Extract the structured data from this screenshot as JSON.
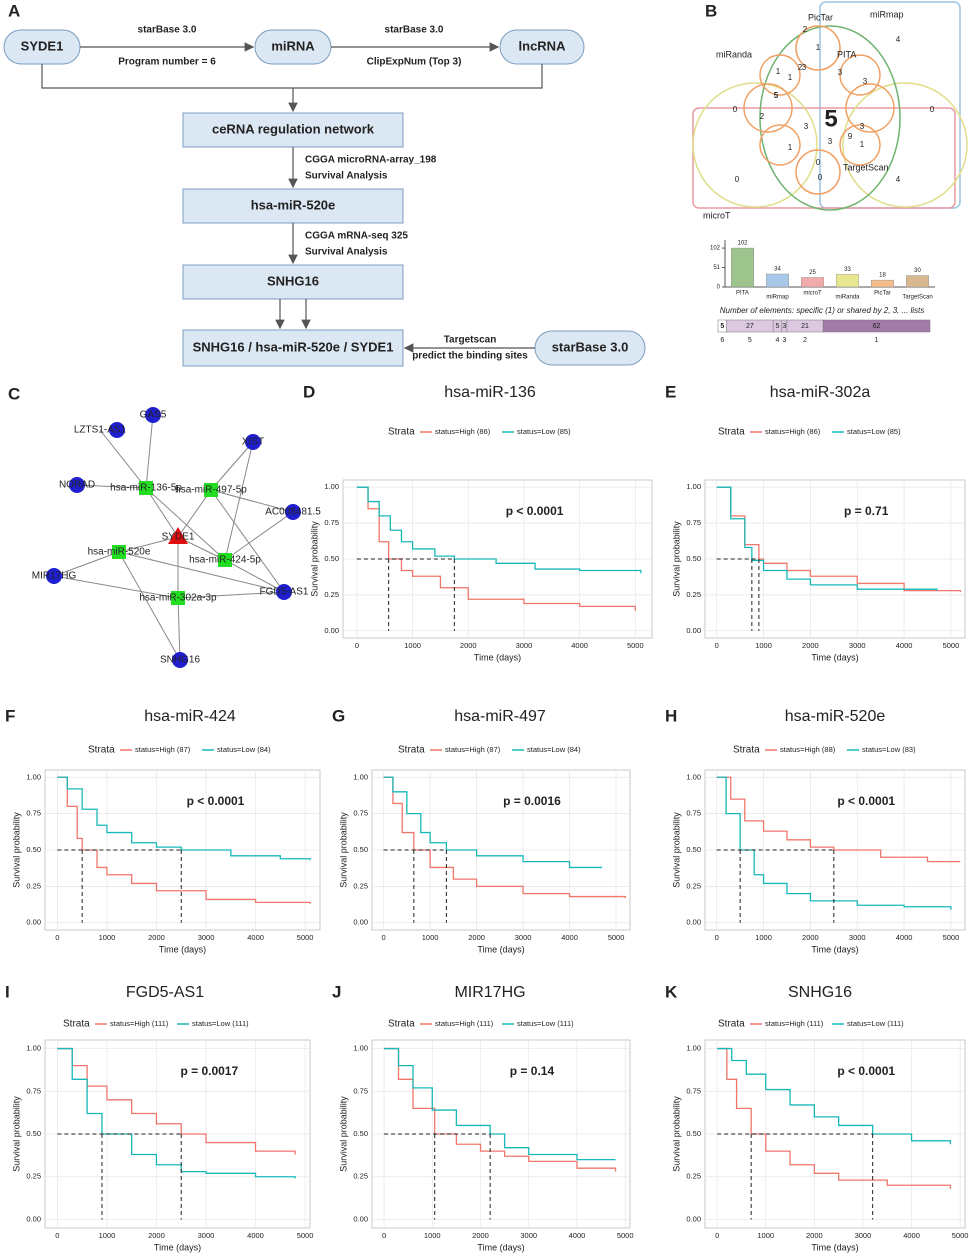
{
  "flowchart": {
    "letter": "A",
    "boxes": [
      "SYDE1",
      "miRNA",
      "lncRNA",
      "ceRNA regulation network",
      "hsa-miR-520e",
      "SNHG16",
      "SNHG16 / hsa-miR-520e / SYDE1",
      "starBase 3.0"
    ],
    "edge_labels": [
      "starBase 3.0",
      "Program number = 6",
      "starBase 3.0",
      "ClipExpNum (Top 3)",
      "CGGA microRNA-array_198",
      "Survival Analysis",
      "CGGA mRNA-seq 325",
      "Survival Analysis",
      "Targetscan",
      "predict the binding sites"
    ]
  },
  "venn": {
    "letter": "B",
    "sets": [
      "miRmap",
      "PicTar",
      "PITA",
      "miRanda",
      "TargetScan",
      "microT"
    ],
    "core": 5,
    "regions": [
      4,
      0,
      0,
      2,
      3,
      3,
      2,
      1,
      1,
      3,
      3,
      5,
      1,
      3,
      0,
      4,
      9,
      1,
      3,
      0,
      0,
      1,
      2
    ],
    "strip_title": "Number of elements: specific (1) or shared by 2, 3, ... lists",
    "strip": [
      5,
      27,
      5,
      3,
      21,
      62
    ],
    "strip_counts": [
      6,
      5,
      4,
      3,
      2,
      1
    ]
  },
  "network": {
    "letter": "C",
    "nodes": [
      {
        "label": "LZTS1-AS1",
        "kind": "lncRNA"
      },
      {
        "label": "GAS5",
        "kind": "lncRNA"
      },
      {
        "label": "NORAD",
        "kind": "lncRNA"
      },
      {
        "label": "XIST",
        "kind": "lncRNA"
      },
      {
        "label": "AC008481.5",
        "kind": "lncRNA"
      },
      {
        "label": "MIR17HG",
        "kind": "lncRNA"
      },
      {
        "label": "FGD5-AS1",
        "kind": "lncRNA"
      },
      {
        "label": "SNHG16",
        "kind": "lncRNA"
      },
      {
        "label": "hsa-miR-136-5p",
        "kind": "miRNA"
      },
      {
        "label": "hsa-miR-497-5p",
        "kind": "miRNA"
      },
      {
        "label": "hsa-miR-520e",
        "kind": "miRNA"
      },
      {
        "label": "hsa-miR-424-5p",
        "kind": "miRNA"
      },
      {
        "label": "hsa-miR-302a-3p",
        "kind": "miRNA"
      },
      {
        "label": "SYDE1",
        "kind": "mRNA"
      }
    ],
    "edges": [
      [
        0,
        8
      ],
      [
        1,
        8
      ],
      [
        2,
        8
      ],
      [
        8,
        13
      ],
      [
        8,
        11
      ],
      [
        3,
        9
      ],
      [
        3,
        11
      ],
      [
        9,
        13
      ],
      [
        9,
        4
      ],
      [
        9,
        6
      ],
      [
        4,
        11
      ],
      [
        11,
        13
      ],
      [
        11,
        6
      ],
      [
        10,
        13
      ],
      [
        10,
        5
      ],
      [
        10,
        7
      ],
      [
        10,
        6
      ],
      [
        12,
        13
      ],
      [
        12,
        7
      ],
      [
        12,
        6
      ],
      [
        12,
        5
      ]
    ]
  },
  "chart_data": [
    {
      "type": "bar",
      "letter": "",
      "categories": [
        "PITA",
        "miRmap",
        "microT",
        "miRanda",
        "PicTar",
        "TargetScan"
      ],
      "values": [
        102,
        34,
        25,
        33,
        18,
        30
      ],
      "colors": [
        "#9cc48c",
        "#a9c7e8",
        "#f2aaaa",
        "#e8e690",
        "#f5bc8c",
        "#d8b890"
      ],
      "ylim": [
        0,
        110
      ],
      "yticks": [
        0,
        51,
        102
      ]
    },
    {
      "type": "km",
      "letter": "D",
      "title": "hsa-miR-136",
      "xlabel": "Time (days)",
      "ylabel": "Survival probability",
      "legend_title": "Strata",
      "annotation": "p < 0.0001",
      "xlim": [
        -250,
        5300
      ],
      "xticks": [
        0,
        1000,
        2000,
        3000,
        4000,
        5000
      ],
      "ylim": [
        -0.05,
        1.05
      ],
      "yticks": [
        {
          "value": 0,
          "label": "0.00"
        },
        {
          "value": 0.25,
          "label": "0.25"
        },
        {
          "value": 0.5,
          "label": "0.50"
        },
        {
          "value": 0.75,
          "label": "0.75"
        },
        {
          "value": 1,
          "label": "1.00"
        }
      ],
      "grid": true,
      "medians": [
        570,
        1750
      ],
      "median_y": 0.5,
      "series": [
        {
          "name": "status=High (86)",
          "color": "#f0756b",
          "x": [
            0,
            200,
            400,
            570,
            800,
            1000,
            1500,
            2000,
            3000,
            4000,
            5000
          ],
          "values": [
            1,
            0.85,
            0.62,
            0.5,
            0.42,
            0.38,
            0.3,
            0.22,
            0.19,
            0.17,
            0.14
          ]
        },
        {
          "name": "status=Low (85)",
          "color": "#17b8b8",
          "x": [
            0,
            200,
            400,
            600,
            800,
            1000,
            1400,
            1750,
            2500,
            3200,
            4000,
            5100
          ],
          "values": [
            1,
            0.9,
            0.8,
            0.7,
            0.62,
            0.57,
            0.52,
            0.5,
            0.47,
            0.43,
            0.42,
            0.4
          ]
        }
      ]
    },
    {
      "type": "km",
      "letter": "E",
      "title": "hsa-miR-302a",
      "xlabel": "Time (days)",
      "ylabel": "Survival probability",
      "legend_title": "Strata",
      "annotation": "p = 0.71",
      "xlim": [
        -250,
        5300
      ],
      "xticks": [
        0,
        1000,
        2000,
        3000,
        4000,
        5000
      ],
      "ylim": [
        -0.05,
        1.05
      ],
      "yticks": [
        {
          "value": 0,
          "label": "0.00"
        },
        {
          "value": 0.25,
          "label": "0.25"
        },
        {
          "value": 0.5,
          "label": "0.50"
        },
        {
          "value": 0.75,
          "label": "0.75"
        },
        {
          "value": 1,
          "label": "1.00"
        }
      ],
      "grid": true,
      "medians": [
        750,
        900
      ],
      "median_y": 0.5,
      "series": [
        {
          "name": "status=High (86)",
          "color": "#f0756b",
          "x": [
            0,
            300,
            600,
            900,
            1000,
            1500,
            2000,
            3000,
            4000,
            5200
          ],
          "values": [
            1,
            0.8,
            0.6,
            0.5,
            0.47,
            0.42,
            0.38,
            0.33,
            0.28,
            0.27
          ]
        },
        {
          "name": "status=Low (85)",
          "color": "#17b8b8",
          "x": [
            0,
            300,
            600,
            750,
            1000,
            1500,
            2000,
            3000,
            4700
          ],
          "values": [
            1,
            0.78,
            0.58,
            0.49,
            0.42,
            0.36,
            0.32,
            0.29,
            0.28
          ]
        }
      ]
    },
    {
      "type": "km",
      "letter": "F",
      "title": "hsa-miR-424",
      "xlabel": "Time (days)",
      "ylabel": "Survival probability",
      "legend_title": "Strata",
      "annotation": "p < 0.0001",
      "xlim": [
        -250,
        5300
      ],
      "xticks": [
        0,
        1000,
        2000,
        3000,
        4000,
        5000
      ],
      "ylim": [
        -0.05,
        1.05
      ],
      "yticks": [
        {
          "value": 0,
          "label": "0.00"
        },
        {
          "value": 0.25,
          "label": "0.25"
        },
        {
          "value": 0.5,
          "label": "0.50"
        },
        {
          "value": 0.75,
          "label": "0.75"
        },
        {
          "value": 1,
          "label": "1.00"
        }
      ],
      "grid": true,
      "medians": [
        500,
        2500
      ],
      "median_y": 0.5,
      "series": [
        {
          "name": "status=High (87)",
          "color": "#f0756b",
          "x": [
            0,
            200,
            400,
            500,
            800,
            1000,
            1500,
            2000,
            3000,
            4000,
            5100
          ],
          "values": [
            1,
            0.8,
            0.58,
            0.5,
            0.38,
            0.33,
            0.27,
            0.22,
            0.16,
            0.14,
            0.13
          ]
        },
        {
          "name": "status=Low (84)",
          "color": "#17b8b8",
          "x": [
            0,
            200,
            500,
            800,
            1000,
            1500,
            2000,
            2500,
            3500,
            4500,
            5100
          ],
          "values": [
            1,
            0.92,
            0.78,
            0.67,
            0.62,
            0.55,
            0.52,
            0.5,
            0.46,
            0.44,
            0.43
          ]
        }
      ]
    },
    {
      "type": "km",
      "letter": "G",
      "title": "hsa-miR-497",
      "xlabel": "Time (days)",
      "ylabel": "Survival probability",
      "legend_title": "Strata",
      "annotation": "p = 0.0016",
      "xlim": [
        -250,
        5300
      ],
      "xticks": [
        0,
        1000,
        2000,
        3000,
        4000,
        5000
      ],
      "ylim": [
        -0.05,
        1.05
      ],
      "yticks": [
        {
          "value": 0,
          "label": "0.00"
        },
        {
          "value": 0.25,
          "label": "0.25"
        },
        {
          "value": 0.5,
          "label": "0.50"
        },
        {
          "value": 0.75,
          "label": "0.75"
        },
        {
          "value": 1,
          "label": "1.00"
        }
      ],
      "grid": true,
      "medians": [
        650,
        1350
      ],
      "median_y": 0.5,
      "series": [
        {
          "name": "status=High (87)",
          "color": "#f0756b",
          "x": [
            0,
            200,
            400,
            650,
            1000,
            1500,
            2000,
            3000,
            4000,
            5200
          ],
          "values": [
            1,
            0.82,
            0.62,
            0.5,
            0.38,
            0.3,
            0.25,
            0.2,
            0.18,
            0.17
          ]
        },
        {
          "name": "status=Low (84)",
          "color": "#17b8b8",
          "x": [
            0,
            200,
            500,
            800,
            1000,
            1350,
            2000,
            3000,
            4000,
            4700
          ],
          "values": [
            1,
            0.9,
            0.75,
            0.62,
            0.55,
            0.5,
            0.46,
            0.42,
            0.38,
            0.38
          ]
        }
      ]
    },
    {
      "type": "km",
      "letter": "H",
      "title": "hsa-miR-520e",
      "xlabel": "Time (days)",
      "ylabel": "Survival probability",
      "legend_title": "Strata",
      "annotation": "p < 0.0001",
      "xlim": [
        -250,
        5300
      ],
      "xticks": [
        0,
        1000,
        2000,
        3000,
        4000,
        5000
      ],
      "ylim": [
        -0.05,
        1.05
      ],
      "yticks": [
        {
          "value": 0,
          "label": "0.00"
        },
        {
          "value": 0.25,
          "label": "0.25"
        },
        {
          "value": 0.5,
          "label": "0.50"
        },
        {
          "value": 0.75,
          "label": "0.75"
        },
        {
          "value": 1,
          "label": "1.00"
        }
      ],
      "grid": true,
      "medians": [
        500,
        2500
      ],
      "median_y": 0.5,
      "series": [
        {
          "name": "status=High (88)",
          "color": "#f0756b",
          "x": [
            0,
            300,
            600,
            1000,
            1500,
            2000,
            2500,
            3500,
            4500,
            5200
          ],
          "values": [
            1,
            0.85,
            0.7,
            0.63,
            0.57,
            0.52,
            0.5,
            0.45,
            0.42,
            0.42
          ]
        },
        {
          "name": "status=Low (83)",
          "color": "#17b8b8",
          "x": [
            0,
            200,
            500,
            800,
            1000,
            1500,
            2000,
            3000,
            4000,
            5000
          ],
          "values": [
            1,
            0.75,
            0.5,
            0.33,
            0.27,
            0.2,
            0.15,
            0.12,
            0.11,
            0.09
          ]
        }
      ]
    },
    {
      "type": "km",
      "letter": "I",
      "title": "FGD5-AS1",
      "xlabel": "Time (days)",
      "ylabel": "Survival probability",
      "legend_title": "Strata",
      "annotation": "p = 0.0017",
      "xlim": [
        -250,
        5100
      ],
      "xticks": [
        0,
        1000,
        2000,
        3000,
        4000,
        5000
      ],
      "ylim": [
        -0.05,
        1.05
      ],
      "yticks": [
        {
          "value": 0,
          "label": "0.00"
        },
        {
          "value": 0.25,
          "label": "0.25"
        },
        {
          "value": 0.5,
          "label": "0.50"
        },
        {
          "value": 0.75,
          "label": "0.75"
        },
        {
          "value": 1,
          "label": "1.00"
        }
      ],
      "grid": true,
      "medians": [
        900,
        2500
      ],
      "median_y": 0.5,
      "series": [
        {
          "name": "status=High (111)",
          "color": "#f0756b",
          "x": [
            0,
            300,
            600,
            1000,
            1500,
            2000,
            2500,
            3000,
            4000,
            4800
          ],
          "values": [
            1,
            0.9,
            0.78,
            0.7,
            0.62,
            0.56,
            0.5,
            0.45,
            0.4,
            0.38
          ]
        },
        {
          "name": "status=Low (111)",
          "color": "#17b8b8",
          "x": [
            0,
            300,
            600,
            900,
            1500,
            2000,
            2500,
            3000,
            4000,
            4800
          ],
          "values": [
            1,
            0.82,
            0.62,
            0.5,
            0.38,
            0.32,
            0.28,
            0.27,
            0.25,
            0.24
          ]
        }
      ]
    },
    {
      "type": "km",
      "letter": "J",
      "title": "MIR17HG",
      "xlabel": "Time (days)",
      "ylabel": "Survival probability",
      "legend_title": "Strata",
      "annotation": "p = 0.14",
      "xlim": [
        -250,
        5100
      ],
      "xticks": [
        0,
        1000,
        2000,
        3000,
        4000,
        5000
      ],
      "ylim": [
        -0.05,
        1.05
      ],
      "yticks": [
        {
          "value": 0,
          "label": "0.00"
        },
        {
          "value": 0.25,
          "label": "0.25"
        },
        {
          "value": 0.5,
          "label": "0.50"
        },
        {
          "value": 0.75,
          "label": "0.75"
        },
        {
          "value": 1,
          "label": "1.00"
        }
      ],
      "grid": true,
      "medians": [
        1050,
        2200
      ],
      "median_y": 0.5,
      "series": [
        {
          "name": "status=High (111)",
          "color": "#f0756b",
          "x": [
            0,
            300,
            600,
            1050,
            1500,
            2000,
            2500,
            3000,
            4000,
            4800
          ],
          "values": [
            1,
            0.82,
            0.65,
            0.5,
            0.44,
            0.4,
            0.37,
            0.34,
            0.3,
            0.28
          ]
        },
        {
          "name": "status=Low (111)",
          "color": "#17b8b8",
          "x": [
            0,
            300,
            600,
            1000,
            1500,
            2200,
            2500,
            3000,
            4000,
            4800
          ],
          "values": [
            1,
            0.9,
            0.77,
            0.64,
            0.55,
            0.5,
            0.42,
            0.38,
            0.35,
            0.35
          ]
        }
      ]
    },
    {
      "type": "km",
      "letter": "K",
      "title": "SNHG16",
      "xlabel": "Time (days)",
      "ylabel": "Survival probability",
      "legend_title": "Strata",
      "annotation": "p < 0.0001",
      "xlim": [
        -250,
        5100
      ],
      "xticks": [
        0,
        1000,
        2000,
        3000,
        4000,
        5000
      ],
      "ylim": [
        -0.05,
        1.05
      ],
      "yticks": [
        {
          "value": 0,
          "label": "0.00"
        },
        {
          "value": 0.25,
          "label": "0.25"
        },
        {
          "value": 0.5,
          "label": "0.50"
        },
        {
          "value": 0.75,
          "label": "0.75"
        },
        {
          "value": 1,
          "label": "1.00"
        }
      ],
      "grid": true,
      "medians": [
        700,
        3200
      ],
      "median_y": 0.5,
      "series": [
        {
          "name": "status=High (111)",
          "color": "#f0756b",
          "x": [
            0,
            200,
            400,
            700,
            1000,
            1500,
            2000,
            2500,
            3500,
            4800
          ],
          "values": [
            1,
            0.82,
            0.65,
            0.5,
            0.4,
            0.32,
            0.27,
            0.23,
            0.2,
            0.18
          ]
        },
        {
          "name": "status=Low (111)",
          "color": "#17b8b8",
          "x": [
            0,
            300,
            600,
            1000,
            1500,
            2000,
            2500,
            3200,
            4000,
            4800
          ],
          "values": [
            1,
            0.93,
            0.85,
            0.76,
            0.67,
            0.6,
            0.55,
            0.5,
            0.46,
            0.44
          ]
        }
      ]
    }
  ]
}
